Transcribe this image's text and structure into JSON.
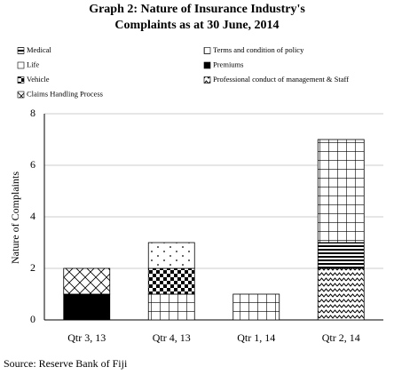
{
  "chart_data": {
    "type": "stacked_bar",
    "title": "Graph 2: Nature of Insurance Industry's Complaints as at 30 June, 2014",
    "y_label": "Nature of Complaints",
    "source": "Source: Reserve Bank of Fiji",
    "categories": [
      "Qtr 3, 13",
      "Qtr 4, 13",
      "Qtr 1, 14",
      "Qtr 2, 14"
    ],
    "series": [
      {
        "name": "Professional conduct of management & Staff",
        "color": "#000000",
        "pattern": "wave",
        "values": [
          0,
          0,
          0,
          2
        ]
      },
      {
        "name": "Premiums",
        "color": "#000000",
        "pattern": "solid",
        "values": [
          1,
          0,
          0,
          0
        ]
      },
      {
        "name": "Medical",
        "color": "#000000",
        "pattern": "hstripe",
        "values": [
          0,
          0,
          0,
          1
        ]
      },
      {
        "name": "Terms and condition of policy",
        "color": "#000000",
        "pattern": "grid",
        "values": [
          0,
          1,
          1,
          4
        ]
      },
      {
        "name": "Vehicle",
        "color": "#000000",
        "pattern": "checker",
        "values": [
          0,
          1,
          0,
          0
        ]
      },
      {
        "name": "Life",
        "color": "#000000",
        "pattern": "dots",
        "values": [
          0,
          1,
          0,
          0
        ]
      },
      {
        "name": "Claims Handling Process",
        "color": "#000000",
        "pattern": "cross",
        "values": [
          1,
          0,
          0,
          0
        ]
      }
    ],
    "ylim": [
      0,
      8
    ],
    "yticks": [
      0,
      2,
      4,
      6,
      8
    ],
    "grid": true
  }
}
